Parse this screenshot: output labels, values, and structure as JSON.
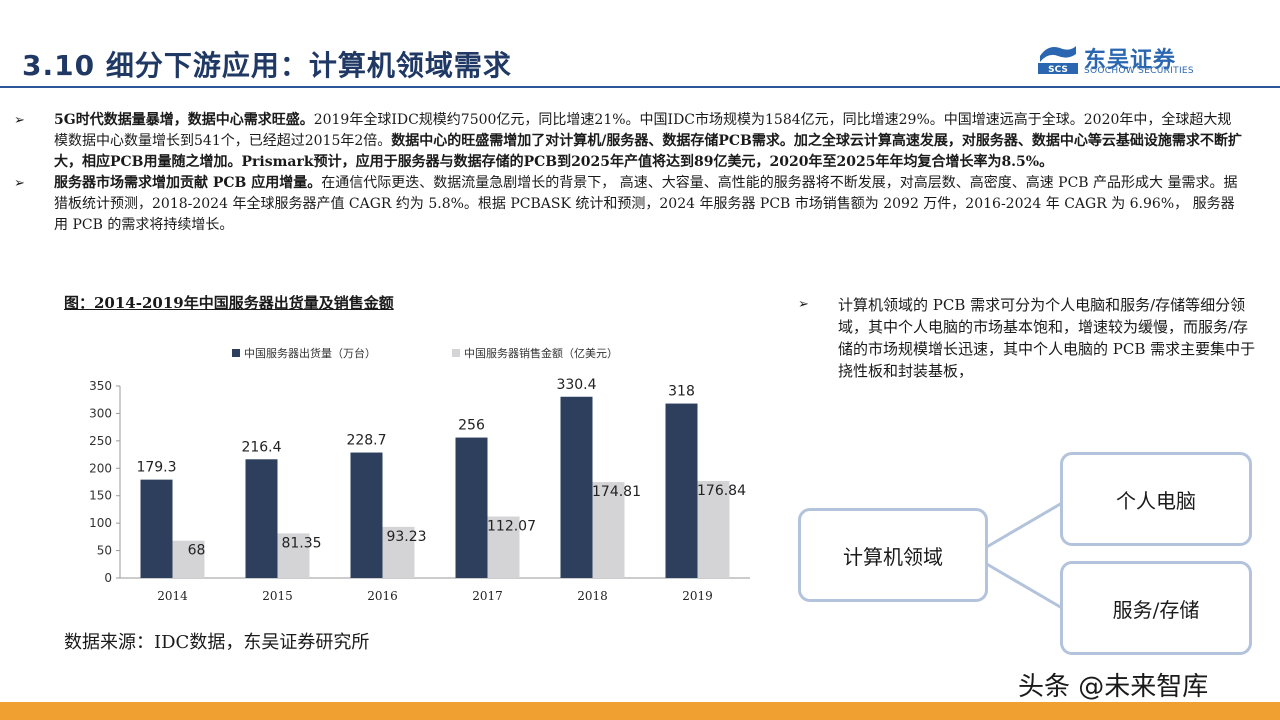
{
  "header": {
    "title": "3.10  细分下游应用：计算机领域需求",
    "logo_name": "东吴证券",
    "logo_sub": "SOOCHOW SECURITIES",
    "logo_mark_text": "SCS"
  },
  "bullets": [
    {
      "mark": "➢",
      "parts": [
        {
          "bold": true,
          "text": "5G时代数据量暴增，数据中心需求旺盛。"
        },
        {
          "bold": false,
          "text": "2019年全球IDC规模约7500亿元，同比增速21%。中国IDC市场规模为1584亿元，同比增速29%。中国增速远高于全球。2020年中，全球超大规模数据中心数量增长到541个，已经超过2015年2倍。"
        },
        {
          "bold": true,
          "text": "数据中心的旺盛需增加了对计算机/服务器、数据存储PCB需求。加之全球云计算高速发展，对服务器、数据中心等云基础设施需求不断扩大，相应PCB用量随之增加。Prismark预计，应用于服务器与数据存储的PCB到2025年产值将达到89亿美元，2020年至2025年年均复合增长率为8.5%。"
        }
      ]
    },
    {
      "mark": "➢",
      "parts": [
        {
          "bold": true,
          "text": "服务器市场需求增加贡献 PCB 应用增量。"
        },
        {
          "bold": false,
          "text": "在通信代际更迭、数据流量急剧增长的背景下， 高速、大容量、高性能的服务器将不断发展，对高层数、高密度、高速 PCB 产品形成大 量需求。据猎板统计预测，2018-2024 年全球服务器产值 CAGR 约为 5.8%。根据 PCBASK 统计和预测，2024 年服务器 PCB 市场销售额为 2092 万件，2016-2024 年 CAGR 为 6.96%， 服务器用 PCB 的需求将持续增长。"
        }
      ]
    }
  ],
  "chart": {
    "title": "图：2014-2019年中国服务器出货量及销售金额",
    "source": "数据来源：IDC数据，东吴证券研究所"
  },
  "chart_data": {
    "type": "bar",
    "title": "图：2014-2019年中国服务器出货量及销售金额",
    "categories": [
      "2014",
      "2015",
      "2016",
      "2017",
      "2018",
      "2019"
    ],
    "series": [
      {
        "name": "中国服务器出货量（万台）",
        "values": [
          179.3,
          216.4,
          228.7,
          256,
          330.4,
          318
        ],
        "labels": [
          "179.3",
          "216.4",
          "228.7",
          "256",
          "330.4",
          "318"
        ],
        "color": "#2e3f5e"
      },
      {
        "name": "中国服务器销售金额（亿美元）",
        "values": [
          68,
          81.35,
          93.23,
          112.07,
          174.81,
          176.84
        ],
        "labels": [
          "68",
          "81.35",
          "93.23",
          "112.07",
          "174.81",
          "176.84"
        ],
        "color": "#d4d4d6"
      }
    ],
    "ylim": [
      0,
      350
    ],
    "yticks": [
      "0",
      "50",
      "100",
      "150",
      "200",
      "250",
      "300",
      "350"
    ],
    "grid": false,
    "legend": "top"
  },
  "side": {
    "mark": "➢",
    "text": "计算机领域的 PCB 需求可分为个人电脑和服务/存储等细分领域，其中个人电脑的市场基本饱和，增速较为缓慢，而服务/存储的市场规模增长迅速，其中个人电脑的 PCB 需求主要集中于挠性板和封装基板，"
  },
  "diagram": {
    "root": "计算机领域",
    "children": [
      "个人电脑",
      "服务/存储"
    ],
    "border_color": "#b4c3dc"
  },
  "footer": {
    "watermark": "头条 @未来智库",
    "bar_color": "#f0a030"
  }
}
